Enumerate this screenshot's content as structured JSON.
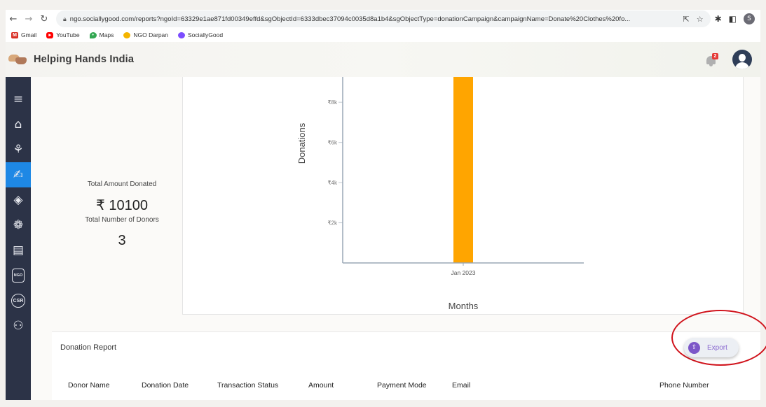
{
  "browser": {
    "url": "ngo.sociallygood.com/reports?ngoId=63329e1ae871fd00349effd&sgObjectId=6333dbec37094c0035d8a1b4&sgObjectType=donationCampaign&campaignName=Donate%20Clothes%20fo...",
    "profile_initial": "S",
    "bookmarks": [
      {
        "label": "Gmail",
        "icon": "gmail-icon",
        "color": "#d93025"
      },
      {
        "label": "YouTube",
        "icon": "youtube-icon",
        "color": "#ff0000"
      },
      {
        "label": "Maps",
        "icon": "maps-icon",
        "color": "#34a853"
      },
      {
        "label": "NGO Darpan",
        "icon": "ngo-darpan-icon",
        "color": "#f4b400"
      },
      {
        "label": "SociallyGood",
        "icon": "sociallygood-icon",
        "color": "#7c4dff"
      }
    ]
  },
  "header": {
    "title": "Helping Hands India",
    "notification_count": "2"
  },
  "sidebar": {
    "items": [
      {
        "name": "menu",
        "icon": "hamburger-icon"
      },
      {
        "name": "home",
        "icon": "home-icon"
      },
      {
        "name": "campaigns",
        "icon": "campaign-icon"
      },
      {
        "name": "reports",
        "icon": "donate-icon",
        "active": true
      },
      {
        "name": "projects",
        "icon": "tag-icon"
      },
      {
        "name": "awards",
        "icon": "award-icon"
      },
      {
        "name": "contacts",
        "icon": "contact-book-icon"
      },
      {
        "name": "ngo",
        "icon": "ngo-icon",
        "text": "NGO"
      },
      {
        "name": "csr",
        "icon": "csr-icon",
        "text": "CSR"
      },
      {
        "name": "users",
        "icon": "users-icon"
      }
    ]
  },
  "stats": {
    "total_amount_label": "Total Amount Donated",
    "total_amount_value": "₹ 10100",
    "total_donors_label": "Total Number of Donors",
    "total_donors_value": "3"
  },
  "chart_data": {
    "type": "bar",
    "categories": [
      "Jan 2023"
    ],
    "values": [
      10100
    ],
    "xlabel": "Months",
    "ylabel": "Donations",
    "ytick_labels": [
      "₹2k",
      "₹4k",
      "₹6k",
      "₹8k"
    ],
    "yticks": [
      2000,
      4000,
      6000,
      8000
    ],
    "ylim": [
      0,
      9260
    ],
    "bar_color": "#ffa500",
    "grid": false
  },
  "report": {
    "title": "Donation Report",
    "export_label": "Export",
    "columns": [
      "Donor Name",
      "Donation Date",
      "Transaction Status",
      "Amount",
      "Payment Mode",
      "Email",
      "Phone Number"
    ]
  }
}
